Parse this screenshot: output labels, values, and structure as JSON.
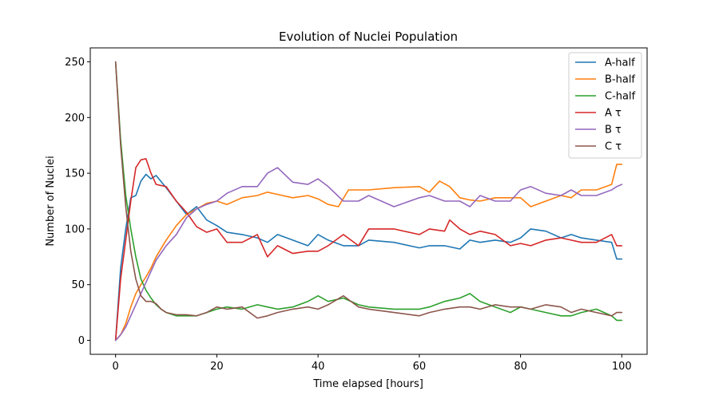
{
  "chart_data": {
    "type": "line",
    "title": "Evolution of Nuclei Population",
    "xlabel": "Time elapsed [hours]",
    "ylabel": "Number of Nuclei",
    "xlim": [
      -5,
      105
    ],
    "ylim": [
      -12.5,
      262.5
    ],
    "xticks": [
      0,
      20,
      40,
      60,
      80,
      100
    ],
    "yticks": [
      0,
      50,
      100,
      150,
      200,
      250
    ],
    "grid": false,
    "legend_position": "top-right",
    "series": [
      {
        "name": "A-half",
        "color": "#1f77b4",
        "x": [
          0,
          1,
          2,
          3,
          4,
          5,
          6,
          7,
          8,
          10,
          12,
          14,
          16,
          18,
          20,
          22,
          25,
          28,
          30,
          32,
          35,
          38,
          40,
          42,
          45,
          48,
          50,
          55,
          60,
          62,
          65,
          68,
          70,
          72,
          75,
          78,
          80,
          82,
          85,
          88,
          90,
          92,
          95,
          98,
          99,
          100
        ],
        "y": [
          0,
          65,
          100,
          128,
          130,
          143,
          149,
          145,
          148,
          137,
          125,
          113,
          120,
          108,
          103,
          97,
          95,
          92,
          88,
          95,
          90,
          85,
          95,
          90,
          85,
          85,
          90,
          88,
          83,
          85,
          85,
          82,
          90,
          88,
          90,
          88,
          92,
          100,
          98,
          92,
          95,
          92,
          90,
          88,
          73,
          73
        ]
      },
      {
        "name": "B-half",
        "color": "#ff7f0e",
        "x": [
          0,
          1,
          2,
          3,
          4,
          5,
          6,
          7,
          8,
          10,
          12,
          14,
          16,
          18,
          20,
          22,
          25,
          28,
          30,
          32,
          35,
          38,
          40,
          42,
          44,
          46,
          48,
          50,
          55,
          60,
          62,
          64,
          66,
          68,
          70,
          72,
          75,
          78,
          80,
          82,
          85,
          88,
          90,
          92,
          95,
          98,
          99,
          100
        ],
        "y": [
          0,
          5,
          15,
          30,
          42,
          50,
          57,
          65,
          75,
          90,
          103,
          113,
          118,
          123,
          125,
          122,
          128,
          130,
          133,
          131,
          128,
          130,
          127,
          122,
          120,
          135,
          135,
          135,
          137,
          138,
          133,
          143,
          138,
          128,
          126,
          125,
          128,
          128,
          128,
          120,
          125,
          130,
          128,
          135,
          135,
          140,
          158,
          158
        ]
      },
      {
        "name": "C-half",
        "color": "#2ca02c",
        "x": [
          0,
          1,
          2,
          3,
          4,
          5,
          6,
          7,
          8,
          9,
          10,
          12,
          14,
          16,
          18,
          20,
          22,
          25,
          28,
          30,
          32,
          35,
          38,
          40,
          42,
          45,
          48,
          50,
          55,
          60,
          62,
          65,
          68,
          70,
          72,
          75,
          78,
          80,
          82,
          85,
          88,
          90,
          92,
          95,
          98,
          99,
          100
        ],
        "y": [
          250,
          180,
          130,
          100,
          75,
          55,
          45,
          38,
          32,
          28,
          25,
          22,
          22,
          22,
          25,
          28,
          30,
          28,
          32,
          30,
          28,
          30,
          35,
          40,
          35,
          38,
          32,
          30,
          28,
          28,
          30,
          35,
          38,
          42,
          35,
          30,
          25,
          30,
          28,
          25,
          22,
          22,
          25,
          28,
          22,
          18,
          18
        ]
      },
      {
        "name": "A τ",
        "color": "#d62728",
        "x": [
          0,
          1,
          2,
          3,
          4,
          5,
          6,
          7,
          8,
          10,
          12,
          14,
          16,
          18,
          20,
          22,
          25,
          28,
          30,
          32,
          35,
          38,
          40,
          42,
          45,
          48,
          50,
          55,
          60,
          62,
          65,
          66,
          68,
          70,
          72,
          75,
          78,
          80,
          82,
          85,
          88,
          90,
          92,
          95,
          98,
          99,
          100
        ],
        "y": [
          0,
          55,
          90,
          125,
          155,
          162,
          163,
          150,
          140,
          138,
          125,
          115,
          102,
          97,
          100,
          88,
          88,
          95,
          75,
          85,
          78,
          80,
          80,
          85,
          95,
          85,
          100,
          100,
          95,
          100,
          98,
          108,
          100,
          95,
          98,
          95,
          85,
          87,
          85,
          90,
          92,
          90,
          88,
          88,
          95,
          85,
          85
        ]
      },
      {
        "name": "B τ",
        "color": "#9467bd",
        "x": [
          0,
          1,
          2,
          3,
          4,
          5,
          6,
          7,
          8,
          10,
          12,
          14,
          16,
          18,
          20,
          22,
          25,
          28,
          30,
          32,
          35,
          38,
          40,
          42,
          45,
          48,
          50,
          55,
          60,
          62,
          65,
          68,
          70,
          72,
          75,
          78,
          80,
          82,
          85,
          88,
          90,
          92,
          95,
          98,
          99,
          100
        ],
        "y": [
          0,
          5,
          12,
          22,
          32,
          42,
          52,
          62,
          72,
          85,
          95,
          110,
          118,
          122,
          125,
          132,
          138,
          138,
          150,
          155,
          142,
          140,
          145,
          138,
          125,
          125,
          130,
          120,
          128,
          130,
          125,
          125,
          120,
          130,
          125,
          125,
          135,
          138,
          132,
          130,
          135,
          130,
          130,
          135,
          138,
          140
        ]
      },
      {
        "name": "C τ",
        "color": "#8c564b",
        "x": [
          0,
          1,
          2,
          3,
          4,
          5,
          6,
          7,
          8,
          9,
          10,
          12,
          14,
          16,
          18,
          20,
          22,
          25,
          28,
          30,
          32,
          35,
          38,
          40,
          42,
          45,
          48,
          50,
          55,
          60,
          62,
          65,
          68,
          70,
          72,
          75,
          78,
          80,
          82,
          85,
          88,
          90,
          92,
          95,
          98,
          99,
          100
        ],
        "y": [
          250,
          175,
          120,
          80,
          55,
          40,
          35,
          35,
          33,
          28,
          25,
          23,
          23,
          22,
          25,
          30,
          28,
          30,
          20,
          22,
          25,
          28,
          30,
          28,
          32,
          40,
          30,
          28,
          25,
          22,
          25,
          28,
          30,
          30,
          28,
          32,
          30,
          30,
          28,
          32,
          30,
          25,
          28,
          25,
          22,
          25,
          25
        ]
      }
    ]
  }
}
